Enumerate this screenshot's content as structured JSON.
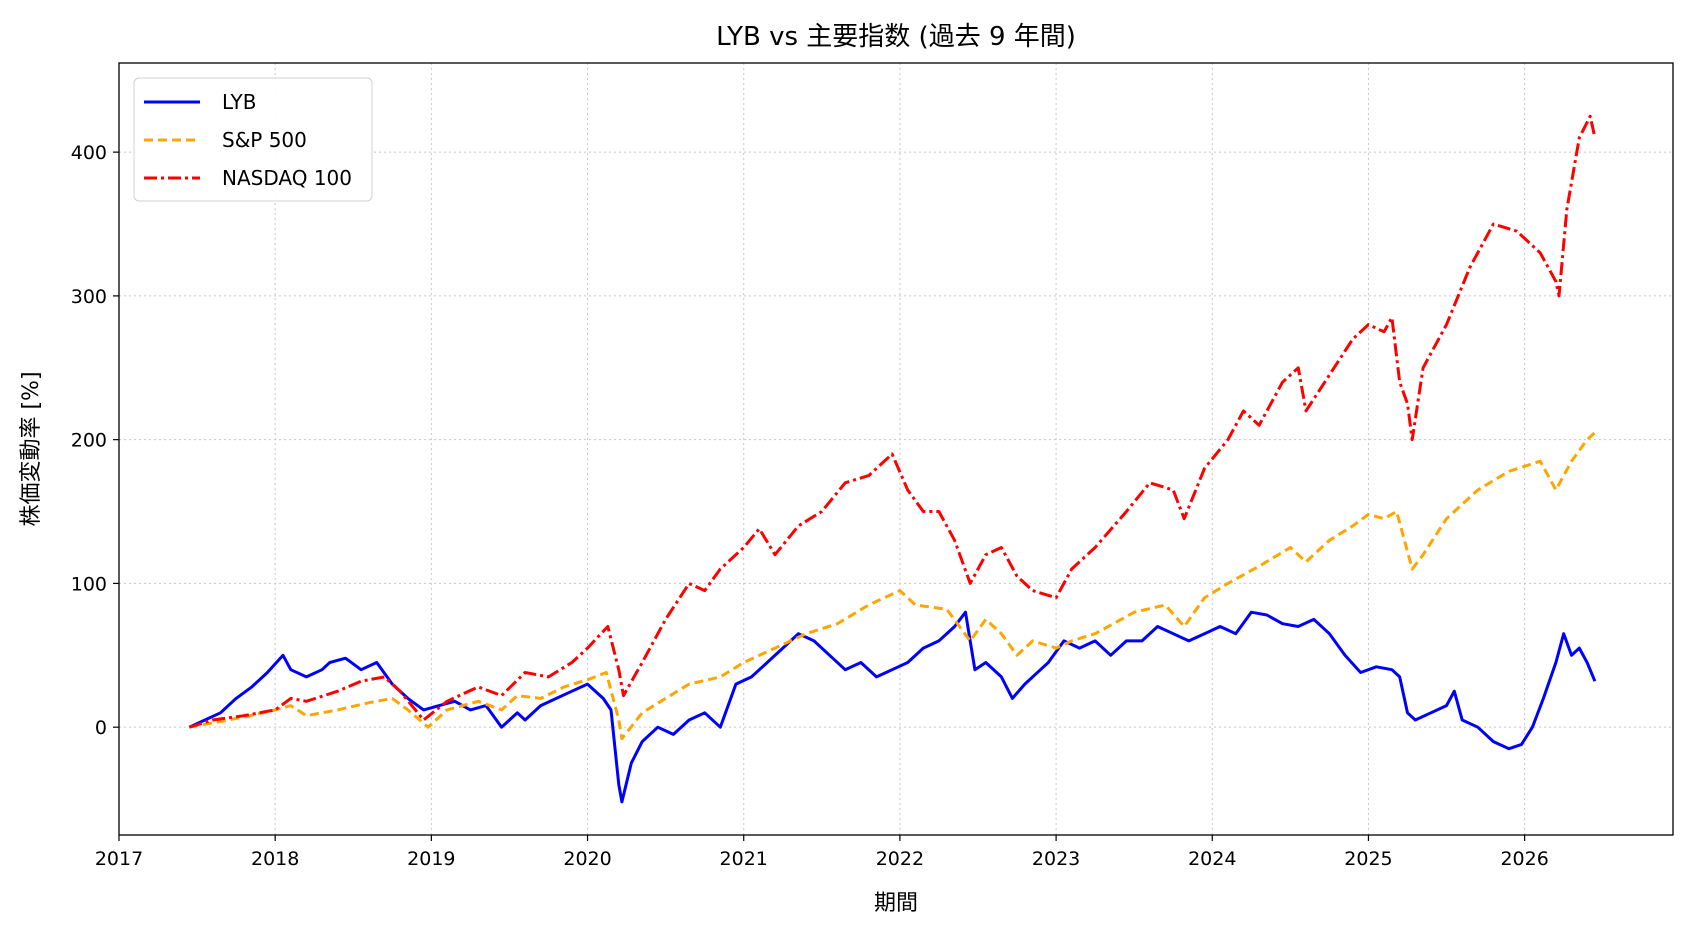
{
  "chart_data": {
    "type": "line",
    "title": "LYB vs 主要指数 (過去 9 年間)",
    "xlabel": "期間",
    "ylabel": "株価変動率 [%]",
    "xlim": [
      2017.0,
      2026.95
    ],
    "ylim": [
      -75,
      462
    ],
    "xticks": [
      "2017",
      "2018",
      "2019",
      "2020",
      "2021",
      "2022",
      "2023",
      "2024",
      "2025",
      "2026"
    ],
    "yticks": [
      0,
      100,
      200,
      300,
      400
    ],
    "grid": true,
    "legend_position": "top-left",
    "series": [
      {
        "name": "LYB",
        "color": "#0000ff",
        "style": "solid",
        "points": [
          [
            2017.45,
            0
          ],
          [
            2017.55,
            5
          ],
          [
            2017.65,
            10
          ],
          [
            2017.75,
            20
          ],
          [
            2017.85,
            28
          ],
          [
            2017.95,
            38
          ],
          [
            2018.05,
            50
          ],
          [
            2018.1,
            40
          ],
          [
            2018.2,
            35
          ],
          [
            2018.3,
            40
          ],
          [
            2018.35,
            45
          ],
          [
            2018.45,
            48
          ],
          [
            2018.55,
            40
          ],
          [
            2018.65,
            45
          ],
          [
            2018.75,
            30
          ],
          [
            2018.85,
            20
          ],
          [
            2018.95,
            12
          ],
          [
            2019.05,
            15
          ],
          [
            2019.15,
            18
          ],
          [
            2019.25,
            12
          ],
          [
            2019.35,
            15
          ],
          [
            2019.45,
            0
          ],
          [
            2019.55,
            10
          ],
          [
            2019.6,
            5
          ],
          [
            2019.7,
            15
          ],
          [
            2019.8,
            20
          ],
          [
            2019.9,
            25
          ],
          [
            2020.0,
            30
          ],
          [
            2020.1,
            20
          ],
          [
            2020.15,
            12
          ],
          [
            2020.2,
            -40
          ],
          [
            2020.22,
            -52
          ],
          [
            2020.28,
            -25
          ],
          [
            2020.35,
            -10
          ],
          [
            2020.45,
            0
          ],
          [
            2020.55,
            -5
          ],
          [
            2020.65,
            5
          ],
          [
            2020.75,
            10
          ],
          [
            2020.85,
            0
          ],
          [
            2020.95,
            30
          ],
          [
            2021.05,
            35
          ],
          [
            2021.15,
            45
          ],
          [
            2021.25,
            55
          ],
          [
            2021.35,
            65
          ],
          [
            2021.45,
            60
          ],
          [
            2021.55,
            50
          ],
          [
            2021.65,
            40
          ],
          [
            2021.75,
            45
          ],
          [
            2021.85,
            35
          ],
          [
            2021.95,
            40
          ],
          [
            2022.05,
            45
          ],
          [
            2022.15,
            55
          ],
          [
            2022.25,
            60
          ],
          [
            2022.35,
            70
          ],
          [
            2022.42,
            80
          ],
          [
            2022.48,
            40
          ],
          [
            2022.55,
            45
          ],
          [
            2022.65,
            35
          ],
          [
            2022.72,
            20
          ],
          [
            2022.8,
            30
          ],
          [
            2022.9,
            40
          ],
          [
            2022.95,
            45
          ],
          [
            2023.05,
            60
          ],
          [
            2023.15,
            55
          ],
          [
            2023.25,
            60
          ],
          [
            2023.35,
            50
          ],
          [
            2023.45,
            60
          ],
          [
            2023.55,
            60
          ],
          [
            2023.65,
            70
          ],
          [
            2023.75,
            65
          ],
          [
            2023.85,
            60
          ],
          [
            2023.95,
            65
          ],
          [
            2024.05,
            70
          ],
          [
            2024.15,
            65
          ],
          [
            2024.25,
            80
          ],
          [
            2024.35,
            78
          ],
          [
            2024.45,
            72
          ],
          [
            2024.55,
            70
          ],
          [
            2024.65,
            75
          ],
          [
            2024.75,
            65
          ],
          [
            2024.85,
            50
          ],
          [
            2024.95,
            38
          ],
          [
            2025.05,
            42
          ],
          [
            2025.15,
            40
          ],
          [
            2025.2,
            35
          ],
          [
            2025.25,
            10
          ],
          [
            2025.3,
            5
          ],
          [
            2025.4,
            10
          ],
          [
            2025.5,
            15
          ],
          [
            2025.55,
            25
          ],
          [
            2025.6,
            5
          ],
          [
            2025.7,
            0
          ],
          [
            2025.8,
            -10
          ],
          [
            2025.9,
            -15
          ],
          [
            2025.98,
            -12
          ],
          [
            2026.05,
            0
          ],
          [
            2026.12,
            20
          ],
          [
            2026.2,
            45
          ],
          [
            2026.25,
            65
          ],
          [
            2026.3,
            50
          ],
          [
            2026.35,
            55
          ],
          [
            2026.4,
            45
          ],
          [
            2026.45,
            32
          ]
        ]
      },
      {
        "name": "S&P 500",
        "color": "#ffa500",
        "style": "dashed",
        "points": [
          [
            2017.45,
            0
          ],
          [
            2017.6,
            3
          ],
          [
            2017.8,
            7
          ],
          [
            2018.0,
            12
          ],
          [
            2018.1,
            15
          ],
          [
            2018.2,
            8
          ],
          [
            2018.4,
            12
          ],
          [
            2018.6,
            17
          ],
          [
            2018.75,
            20
          ],
          [
            2018.85,
            12
          ],
          [
            2018.98,
            0
          ],
          [
            2019.1,
            12
          ],
          [
            2019.3,
            18
          ],
          [
            2019.45,
            12
          ],
          [
            2019.55,
            22
          ],
          [
            2019.7,
            20
          ],
          [
            2019.85,
            28
          ],
          [
            2020.0,
            33
          ],
          [
            2020.12,
            38
          ],
          [
            2020.2,
            5
          ],
          [
            2020.22,
            -8
          ],
          [
            2020.35,
            10
          ],
          [
            2020.5,
            20
          ],
          [
            2020.65,
            30
          ],
          [
            2020.85,
            35
          ],
          [
            2021.0,
            45
          ],
          [
            2021.2,
            55
          ],
          [
            2021.4,
            65
          ],
          [
            2021.6,
            72
          ],
          [
            2021.8,
            85
          ],
          [
            2022.0,
            95
          ],
          [
            2022.1,
            85
          ],
          [
            2022.3,
            82
          ],
          [
            2022.45,
            60
          ],
          [
            2022.55,
            75
          ],
          [
            2022.65,
            65
          ],
          [
            2022.75,
            50
          ],
          [
            2022.85,
            60
          ],
          [
            2023.0,
            55
          ],
          [
            2023.1,
            60
          ],
          [
            2023.25,
            65
          ],
          [
            2023.5,
            80
          ],
          [
            2023.7,
            85
          ],
          [
            2023.82,
            70
          ],
          [
            2023.95,
            90
          ],
          [
            2024.1,
            100
          ],
          [
            2024.3,
            112
          ],
          [
            2024.5,
            125
          ],
          [
            2024.6,
            115
          ],
          [
            2024.75,
            130
          ],
          [
            2024.9,
            140
          ],
          [
            2025.0,
            148
          ],
          [
            2025.1,
            145
          ],
          [
            2025.18,
            150
          ],
          [
            2025.28,
            110
          ],
          [
            2025.35,
            120
          ],
          [
            2025.5,
            145
          ],
          [
            2025.7,
            165
          ],
          [
            2025.9,
            178
          ],
          [
            2026.1,
            185
          ],
          [
            2026.2,
            165
          ],
          [
            2026.3,
            185
          ],
          [
            2026.4,
            200
          ],
          [
            2026.45,
            205
          ]
        ]
      },
      {
        "name": "NASDAQ 100",
        "color": "#ff0000",
        "style": "dashdot",
        "points": [
          [
            2017.45,
            0
          ],
          [
            2017.6,
            5
          ],
          [
            2017.8,
            8
          ],
          [
            2018.0,
            12
          ],
          [
            2018.1,
            20
          ],
          [
            2018.2,
            18
          ],
          [
            2018.4,
            25
          ],
          [
            2018.55,
            32
          ],
          [
            2018.7,
            35
          ],
          [
            2018.8,
            25
          ],
          [
            2018.95,
            5
          ],
          [
            2019.1,
            18
          ],
          [
            2019.3,
            28
          ],
          [
            2019.45,
            22
          ],
          [
            2019.6,
            38
          ],
          [
            2019.75,
            35
          ],
          [
            2019.9,
            45
          ],
          [
            2020.0,
            55
          ],
          [
            2020.13,
            70
          ],
          [
            2020.2,
            40
          ],
          [
            2020.23,
            22
          ],
          [
            2020.35,
            45
          ],
          [
            2020.5,
            75
          ],
          [
            2020.65,
            100
          ],
          [
            2020.75,
            95
          ],
          [
            2020.85,
            110
          ],
          [
            2021.0,
            125
          ],
          [
            2021.1,
            138
          ],
          [
            2021.2,
            120
          ],
          [
            2021.35,
            140
          ],
          [
            2021.5,
            150
          ],
          [
            2021.65,
            170
          ],
          [
            2021.8,
            175
          ],
          [
            2021.95,
            190
          ],
          [
            2022.05,
            165
          ],
          [
            2022.15,
            150
          ],
          [
            2022.25,
            150
          ],
          [
            2022.35,
            130
          ],
          [
            2022.45,
            100
          ],
          [
            2022.55,
            120
          ],
          [
            2022.65,
            125
          ],
          [
            2022.75,
            105
          ],
          [
            2022.85,
            95
          ],
          [
            2023.0,
            90
          ],
          [
            2023.1,
            110
          ],
          [
            2023.25,
            125
          ],
          [
            2023.45,
            150
          ],
          [
            2023.6,
            170
          ],
          [
            2023.75,
            165
          ],
          [
            2023.82,
            145
          ],
          [
            2023.95,
            180
          ],
          [
            2024.1,
            200
          ],
          [
            2024.2,
            220
          ],
          [
            2024.3,
            210
          ],
          [
            2024.45,
            240
          ],
          [
            2024.55,
            250
          ],
          [
            2024.6,
            220
          ],
          [
            2024.75,
            245
          ],
          [
            2024.9,
            270
          ],
          [
            2025.0,
            280
          ],
          [
            2025.1,
            275
          ],
          [
            2025.15,
            285
          ],
          [
            2025.2,
            240
          ],
          [
            2025.25,
            225
          ],
          [
            2025.28,
            200
          ],
          [
            2025.35,
            250
          ],
          [
            2025.5,
            280
          ],
          [
            2025.65,
            320
          ],
          [
            2025.8,
            350
          ],
          [
            2025.95,
            345
          ],
          [
            2026.1,
            330
          ],
          [
            2026.2,
            310
          ],
          [
            2026.22,
            300
          ],
          [
            2026.27,
            360
          ],
          [
            2026.35,
            410
          ],
          [
            2026.42,
            425
          ],
          [
            2026.45,
            410
          ]
        ]
      }
    ]
  }
}
